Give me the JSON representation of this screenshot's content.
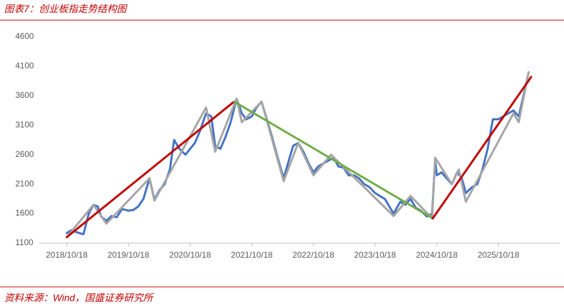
{
  "chart_data": {
    "type": "line",
    "title": "图表7：创业板指走势结构图",
    "source": "资料来源：Wind，国盛证券研究所",
    "xlim": [
      "2018/10/18",
      "2026/06/15"
    ],
    "xticks": [
      "2018/10/18",
      "2019/10/18",
      "2020/10/18",
      "2021/10/18",
      "2022/10/18",
      "2023/10/18",
      "2024/10/18",
      "2025/10/18"
    ],
    "ylim": [
      1100,
      4600
    ],
    "yticks": [
      1100,
      1600,
      2100,
      2600,
      3100,
      3600,
      4100,
      4600
    ],
    "series": [
      {
        "color": "#4472c4",
        "x": [
          "2018/10/18",
          "2018/11/15",
          "2018/12/20",
          "2019/01/25",
          "2019/02/25",
          "2019/03/25",
          "2019/04/20",
          "2019/05/10",
          "2019/06/10",
          "2019/07/10",
          "2019/08/10",
          "2019/09/10",
          "2019/10/18",
          "2019/11/15",
          "2019/12/15",
          "2020/01/15",
          "2020/02/20",
          "2020/03/20",
          "2020/04/20",
          "2020/05/20",
          "2020/06/20",
          "2020/07/15",
          "2020/08/15",
          "2020/09/20",
          "2020/10/18",
          "2020/11/15",
          "2020/12/15",
          "2021/01/20",
          "2021/02/20",
          "2021/03/15",
          "2021/04/15",
          "2021/05/15",
          "2021/06/15",
          "2021/07/20",
          "2021/08/20",
          "2021/09/15",
          "2021/10/18",
          "2021/11/15",
          "2021/12/15",
          "2022/01/15",
          "2022/02/15",
          "2022/03/15",
          "2022/04/25",
          "2022/05/20",
          "2022/06/20",
          "2022/07/20",
          "2022/08/20",
          "2022/09/20",
          "2022/10/18",
          "2022/11/15",
          "2022/12/15",
          "2023/01/15",
          "2023/02/15",
          "2023/03/15",
          "2023/04/15",
          "2023/05/15",
          "2023/06/15",
          "2023/07/15",
          "2023/08/15",
          "2023/09/15",
          "2023/10/18",
          "2023/11/15",
          "2023/12/15",
          "2024/01/15",
          "2024/02/05",
          "2024/03/15",
          "2024/04/15",
          "2024/05/15",
          "2024/06/15",
          "2024/07/15",
          "2024/08/20",
          "2024/09/20",
          "2024/10/08",
          "2024/10/18",
          "2024/11/15",
          "2024/12/15",
          "2025/01/15",
          "2025/02/15",
          "2025/03/15",
          "2025/04/08",
          "2025/05/15",
          "2025/06/15",
          "2025/07/15",
          "2025/08/15",
          "2025/09/15",
          "2025/10/18",
          "2025/11/15",
          "2025/12/15",
          "2026/01/15",
          "2026/02/15",
          "2026/03/15",
          "2026/04/15"
        ],
        "values": [
          1270,
          1320,
          1280,
          1250,
          1600,
          1750,
          1720,
          1550,
          1480,
          1560,
          1540,
          1680,
          1650,
          1660,
          1720,
          1850,
          2200,
          1840,
          2000,
          2100,
          2350,
          2850,
          2700,
          2600,
          2700,
          2800,
          3000,
          3300,
          3250,
          2750,
          2700,
          2900,
          3150,
          3550,
          3300,
          3200,
          3250,
          3400,
          3500,
          3200,
          2900,
          2600,
          2200,
          2450,
          2750,
          2800,
          2650,
          2450,
          2300,
          2400,
          2450,
          2500,
          2550,
          2400,
          2380,
          2250,
          2250,
          2200,
          2100,
          2050,
          1950,
          1900,
          1850,
          1700,
          1600,
          1800,
          1750,
          1850,
          1700,
          1650,
          1550,
          1600,
          2500,
          2250,
          2300,
          2200,
          2100,
          2300,
          2200,
          1950,
          2050,
          2100,
          2350,
          2700,
          3200,
          3200,
          3250,
          3300,
          3350,
          3250,
          3600,
          4000
        ]
      },
      {
        "color": "#a5a5a5",
        "x": [
          "2018/10/18",
          "2019/03/25",
          "2019/06/10",
          "2020/02/20",
          "2020/03/20",
          "2021/01/20",
          "2021/03/15",
          "2021/07/20",
          "2021/08/20",
          "2021/12/15",
          "2022/04/25",
          "2022/07/20",
          "2022/10/18",
          "2023/01/30",
          "2024/02/05",
          "2024/05/15",
          "2024/09/20",
          "2024/10/08",
          "2025/01/15",
          "2025/02/25",
          "2025/04/08",
          "2026/01/15",
          "2026/02/15",
          "2026/04/15"
        ],
        "values": [
          1200,
          1750,
          1430,
          2200,
          1820,
          3400,
          2650,
          3550,
          3150,
          3500,
          2150,
          2800,
          2250,
          2600,
          1560,
          1900,
          1520,
          2550,
          2100,
          2350,
          1800,
          3300,
          3150,
          4000
        ]
      },
      {
        "color": "#c00000",
        "x": [
          "2018/10/18",
          "2021/07/05"
        ],
        "values": [
          1200,
          3500
        ]
      },
      {
        "color": "#70ad47",
        "x": [
          "2021/07/05",
          "2024/09/24"
        ],
        "values": [
          3500,
          1520
        ]
      },
      {
        "color": "#c00000",
        "x": [
          "2024/09/24",
          "2026/04/30"
        ],
        "values": [
          1520,
          3920
        ]
      }
    ]
  }
}
